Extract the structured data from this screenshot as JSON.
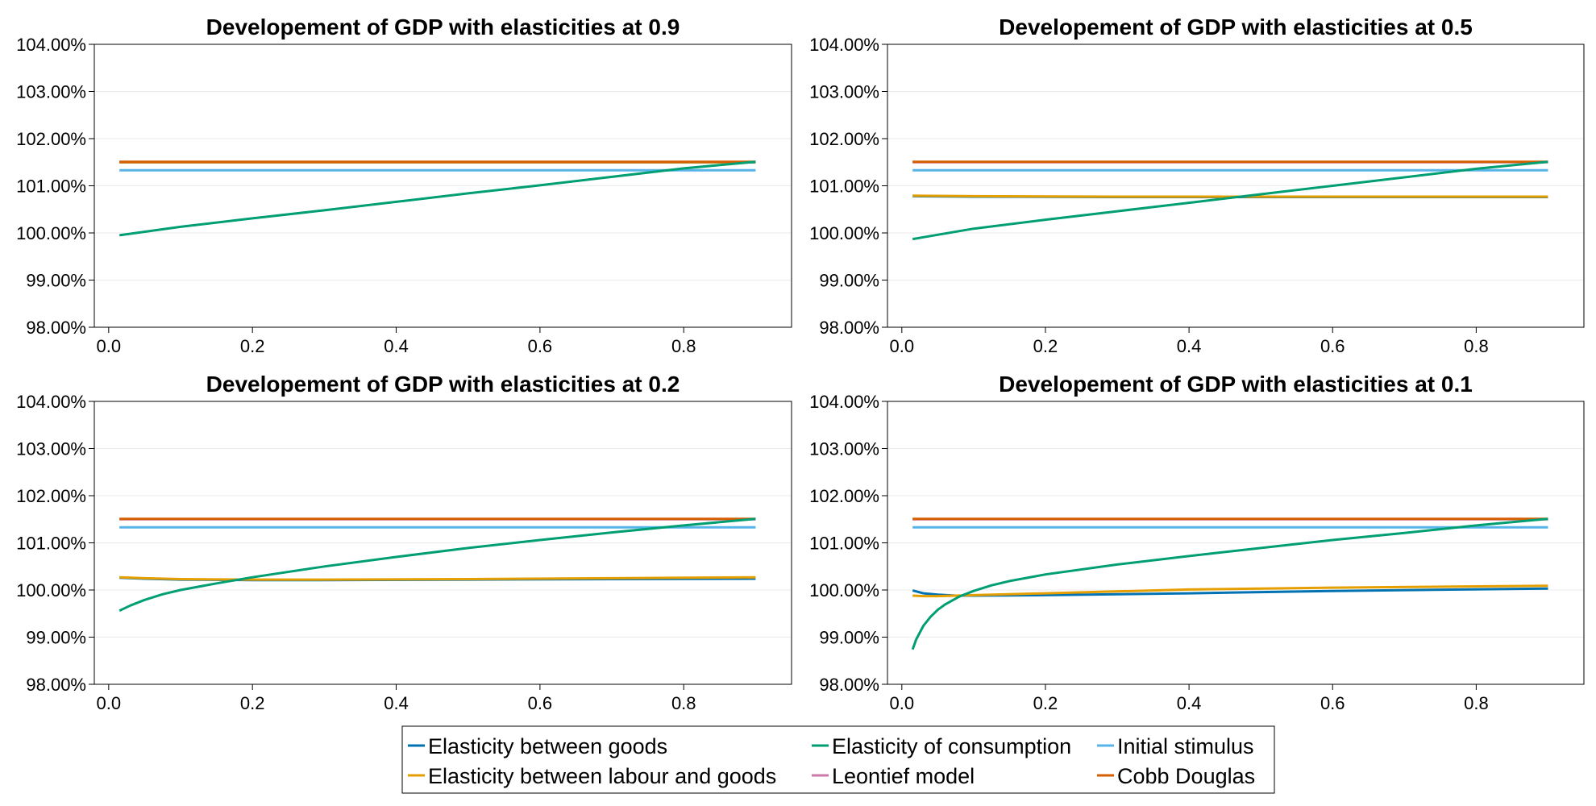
{
  "legend": {
    "placement": "bottom-center",
    "columns": 3,
    "entries": [
      {
        "label": "Elasticity between goods",
        "color": "#0072b2"
      },
      {
        "label": "Elasticity of consumption",
        "color": "#009e73"
      },
      {
        "label": "Initial stimulus",
        "color": "#56b4e9"
      },
      {
        "label": "Elasticity between labour and goods",
        "color": "#e69f00"
      },
      {
        "label": "Leontief model",
        "color": "#cc79a7"
      },
      {
        "label": "Cobb Douglas",
        "color": "#d55e00"
      }
    ]
  },
  "chart_data": [
    {
      "type": "line",
      "title": "Developement of GDP with elasticities at 0.9",
      "xlabel": "",
      "ylabel": "",
      "xlim": [
        -0.02,
        0.95
      ],
      "ylim": [
        98.0,
        104.0
      ],
      "xticks": [
        "0.0",
        "0.2",
        "0.4",
        "0.6",
        "0.8"
      ],
      "yticks": [
        "98.00%",
        "99.00%",
        "100.00%",
        "101.00%",
        "102.00%",
        "103.00%",
        "104.00%"
      ],
      "grid": true,
      "series": [
        {
          "name": "Initial stimulus",
          "color": "#56b4e9",
          "x": [
            0.015,
            0.9
          ],
          "y": [
            101.33,
            101.33
          ]
        },
        {
          "name": "Leontief model",
          "color": "#cc79a7",
          "x": [
            0.015,
            0.9
          ],
          "y": [
            101.5,
            101.5
          ]
        },
        {
          "name": "Elasticity between goods",
          "color": "#0072b2",
          "x": [
            0.015,
            0.9
          ],
          "y": [
            101.5,
            101.5
          ]
        },
        {
          "name": "Elasticity between labour and goods",
          "color": "#e69f00",
          "x": [
            0.015,
            0.9
          ],
          "y": [
            101.5,
            101.5
          ]
        },
        {
          "name": "Cobb Douglas",
          "color": "#d55e00",
          "x": [
            0.015,
            0.9
          ],
          "y": [
            101.51,
            101.51
          ]
        },
        {
          "name": "Elasticity of consumption",
          "color": "#009e73",
          "x": [
            0.015,
            0.1,
            0.2,
            0.3,
            0.4,
            0.5,
            0.6,
            0.7,
            0.8,
            0.9
          ],
          "y": [
            99.95,
            100.13,
            100.31,
            100.48,
            100.66,
            100.84,
            101.01,
            101.19,
            101.37,
            101.51
          ]
        }
      ]
    },
    {
      "type": "line",
      "title": "Developement of GDP with elasticities at 0.5",
      "xlabel": "",
      "ylabel": "",
      "xlim": [
        -0.02,
        0.95
      ],
      "ylim": [
        98.0,
        104.0
      ],
      "xticks": [
        "0.0",
        "0.2",
        "0.4",
        "0.6",
        "0.8"
      ],
      "yticks": [
        "98.00%",
        "99.00%",
        "100.00%",
        "101.00%",
        "102.00%",
        "103.00%",
        "104.00%"
      ],
      "grid": true,
      "series": [
        {
          "name": "Initial stimulus",
          "color": "#56b4e9",
          "x": [
            0.015,
            0.9
          ],
          "y": [
            101.33,
            101.33
          ]
        },
        {
          "name": "Leontief model",
          "color": "#cc79a7",
          "x": [
            0.015,
            0.9
          ],
          "y": [
            101.5,
            101.5
          ]
        },
        {
          "name": "Cobb Douglas",
          "color": "#d55e00",
          "x": [
            0.015,
            0.9
          ],
          "y": [
            101.51,
            101.51
          ]
        },
        {
          "name": "Elasticity between goods",
          "color": "#0072b2",
          "x": [
            0.015,
            0.1,
            0.3,
            0.5,
            0.7,
            0.9
          ],
          "y": [
            100.78,
            100.77,
            100.76,
            100.76,
            100.76,
            100.76
          ]
        },
        {
          "name": "Elasticity between labour and goods",
          "color": "#e69f00",
          "x": [
            0.015,
            0.1,
            0.3,
            0.5,
            0.7,
            0.9
          ],
          "y": [
            100.79,
            100.78,
            100.77,
            100.77,
            100.77,
            100.77
          ]
        },
        {
          "name": "Elasticity of consumption",
          "color": "#009e73",
          "x": [
            0.015,
            0.1,
            0.2,
            0.3,
            0.4,
            0.5,
            0.6,
            0.7,
            0.8,
            0.9
          ],
          "y": [
            99.87,
            100.09,
            100.28,
            100.46,
            100.64,
            100.82,
            101.0,
            101.18,
            101.36,
            101.51
          ]
        }
      ]
    },
    {
      "type": "line",
      "title": "Developement of GDP with elasticities at 0.2",
      "xlabel": "",
      "ylabel": "",
      "xlim": [
        -0.02,
        0.95
      ],
      "ylim": [
        98.0,
        104.0
      ],
      "xticks": [
        "0.0",
        "0.2",
        "0.4",
        "0.6",
        "0.8"
      ],
      "yticks": [
        "98.00%",
        "99.00%",
        "100.00%",
        "101.00%",
        "102.00%",
        "103.00%",
        "104.00%"
      ],
      "grid": true,
      "series": [
        {
          "name": "Initial stimulus",
          "color": "#56b4e9",
          "x": [
            0.015,
            0.9
          ],
          "y": [
            101.33,
            101.33
          ]
        },
        {
          "name": "Leontief model",
          "color": "#cc79a7",
          "x": [
            0.015,
            0.9
          ],
          "y": [
            101.5,
            101.5
          ]
        },
        {
          "name": "Cobb Douglas",
          "color": "#d55e00",
          "x": [
            0.015,
            0.9
          ],
          "y": [
            101.51,
            101.51
          ]
        },
        {
          "name": "Elasticity between goods",
          "color": "#0072b2",
          "x": [
            0.015,
            0.05,
            0.1,
            0.2,
            0.3,
            0.5,
            0.7,
            0.9
          ],
          "y": [
            100.26,
            100.24,
            100.22,
            100.21,
            100.21,
            100.22,
            100.23,
            100.24
          ]
        },
        {
          "name": "Elasticity between labour and goods",
          "color": "#e69f00",
          "x": [
            0.015,
            0.05,
            0.1,
            0.2,
            0.3,
            0.5,
            0.7,
            0.9
          ],
          "y": [
            100.27,
            100.25,
            100.23,
            100.22,
            100.22,
            100.23,
            100.25,
            100.27
          ]
        },
        {
          "name": "Elasticity of consumption",
          "color": "#009e73",
          "x": [
            0.015,
            0.03,
            0.05,
            0.075,
            0.1,
            0.15,
            0.2,
            0.3,
            0.4,
            0.5,
            0.6,
            0.7,
            0.8,
            0.9
          ],
          "y": [
            99.56,
            99.67,
            99.79,
            99.91,
            100.0,
            100.14,
            100.27,
            100.5,
            100.7,
            100.89,
            101.06,
            101.22,
            101.37,
            101.51
          ]
        }
      ]
    },
    {
      "type": "line",
      "title": "Developement of GDP with elasticities at 0.1",
      "xlabel": "",
      "ylabel": "",
      "xlim": [
        -0.02,
        0.95
      ],
      "ylim": [
        98.0,
        104.0
      ],
      "xticks": [
        "0.0",
        "0.2",
        "0.4",
        "0.6",
        "0.8"
      ],
      "yticks": [
        "98.00%",
        "99.00%",
        "100.00%",
        "101.00%",
        "102.00%",
        "103.00%",
        "104.00%"
      ],
      "grid": true,
      "series": [
        {
          "name": "Initial stimulus",
          "color": "#56b4e9",
          "x": [
            0.015,
            0.9
          ],
          "y": [
            101.33,
            101.33
          ]
        },
        {
          "name": "Leontief model",
          "color": "#cc79a7",
          "x": [
            0.015,
            0.9
          ],
          "y": [
            101.5,
            101.5
          ]
        },
        {
          "name": "Cobb Douglas",
          "color": "#d55e00",
          "x": [
            0.015,
            0.9
          ],
          "y": [
            101.51,
            101.51
          ]
        },
        {
          "name": "Elasticity between goods",
          "color": "#0072b2",
          "x": [
            0.015,
            0.03,
            0.05,
            0.075,
            0.1,
            0.2,
            0.4,
            0.6,
            0.9
          ],
          "y": [
            99.99,
            99.93,
            99.9,
            99.88,
            99.88,
            99.89,
            99.93,
            99.98,
            100.03
          ]
        },
        {
          "name": "Elasticity between labour and goods",
          "color": "#e69f00",
          "x": [
            0.015,
            0.03,
            0.05,
            0.075,
            0.1,
            0.2,
            0.4,
            0.6,
            0.9
          ],
          "y": [
            99.88,
            99.87,
            99.87,
            99.88,
            99.89,
            99.93,
            100.01,
            100.05,
            100.09
          ]
        },
        {
          "name": "Elasticity of consumption",
          "color": "#009e73",
          "x": [
            0.015,
            0.02,
            0.03,
            0.04,
            0.05,
            0.06,
            0.08,
            0.1,
            0.125,
            0.15,
            0.2,
            0.3,
            0.4,
            0.5,
            0.6,
            0.7,
            0.8,
            0.9
          ],
          "y": [
            98.74,
            98.95,
            99.24,
            99.43,
            99.58,
            99.69,
            99.86,
            99.98,
            100.1,
            100.19,
            100.33,
            100.54,
            100.72,
            100.89,
            101.06,
            101.21,
            101.37,
            101.51
          ]
        }
      ]
    }
  ]
}
